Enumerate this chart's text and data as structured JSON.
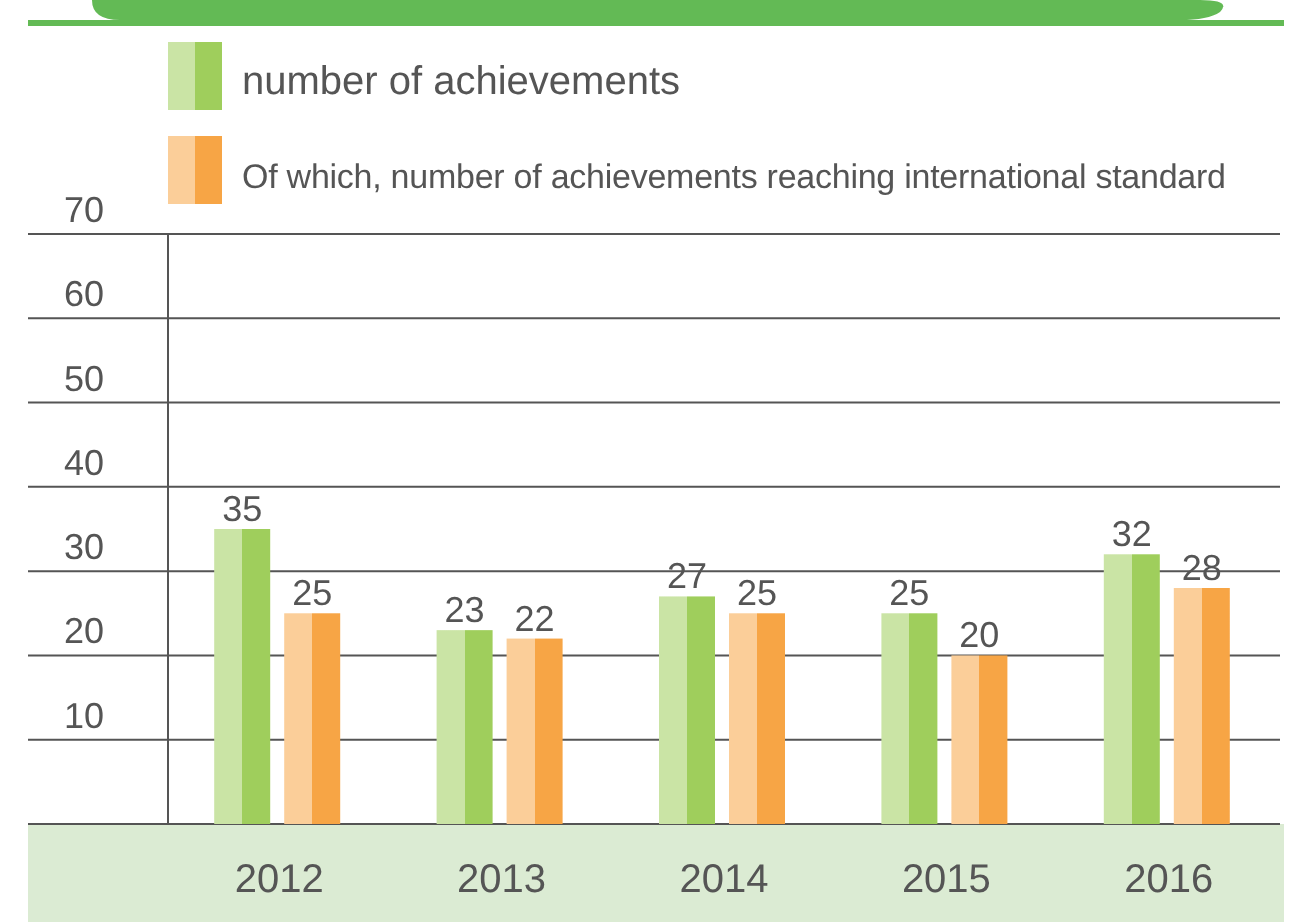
{
  "chart_data": {
    "type": "bar",
    "categories": [
      "2012",
      "2013",
      "2014",
      "2015",
      "2016"
    ],
    "series": [
      {
        "name": "number of achievements",
        "color": "#9fce5c",
        "values": [
          35,
          23,
          27,
          25,
          32
        ]
      },
      {
        "name": "Of which, number of achievements reaching international standard",
        "color": "#f7a545",
        "values": [
          25,
          22,
          25,
          20,
          28
        ]
      }
    ],
    "ylim": [
      0,
      70
    ],
    "yticks": [
      10,
      20,
      30,
      40,
      50,
      60,
      70
    ],
    "grid": "y",
    "legend": "top left",
    "data_labels": true
  }
}
